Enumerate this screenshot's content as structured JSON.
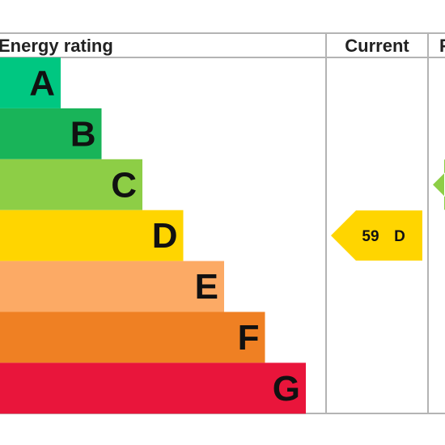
{
  "chart_data": {
    "type": "bar",
    "title": "",
    "columns": [
      {
        "key": "rating",
        "label": "Energy rating"
      },
      {
        "key": "current",
        "label": "Current"
      },
      {
        "key": "potential",
        "label": "P"
      }
    ],
    "bands": [
      {
        "letter": "A",
        "color": "#00c781"
      },
      {
        "letter": "B",
        "color": "#19b459"
      },
      {
        "letter": "C",
        "color": "#8dce46"
      },
      {
        "letter": "D",
        "color": "#ffd500"
      },
      {
        "letter": "E",
        "color": "#fcaa65"
      },
      {
        "letter": "F",
        "color": "#ef8023"
      },
      {
        "letter": "G",
        "color": "#e9153b"
      }
    ],
    "current": {
      "score": "59",
      "band": "D",
      "color": "#ffd500"
    },
    "potential": {
      "band": "C",
      "color": "#8dce46"
    }
  }
}
